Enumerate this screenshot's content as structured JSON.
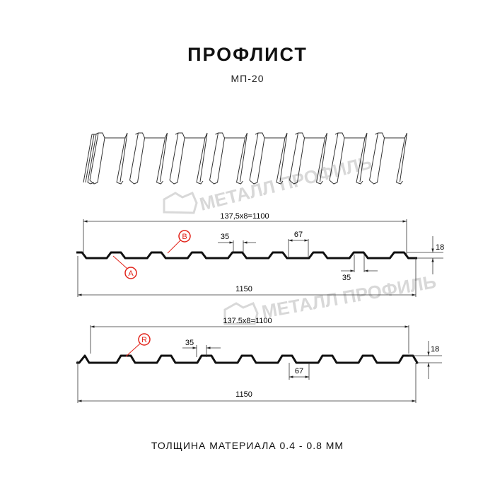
{
  "title": "ПРОФЛИСТ",
  "subtitle": "МП-20",
  "footer": "ТОЛЩИНА МАТЕРИАЛА 0.4 - 0.8 ММ",
  "watermark": "МЕТАЛЛ ПРОФИЛЬ",
  "profile1": {
    "pitch_dim": "137,5x8=1100",
    "top_width": "35",
    "rib_width": "67",
    "bottom_width": "35",
    "height": "18",
    "total_width": "1150",
    "label_a": "A",
    "label_b": "B"
  },
  "profile2": {
    "pitch_dim": "137.5x8=1100",
    "top_width": "35",
    "rib_width": "67",
    "height": "18",
    "total_width": "1150",
    "label_r": "R"
  },
  "colors": {
    "accent": "#e2231a",
    "line": "#111111",
    "watermark": "#c8c8c8"
  }
}
